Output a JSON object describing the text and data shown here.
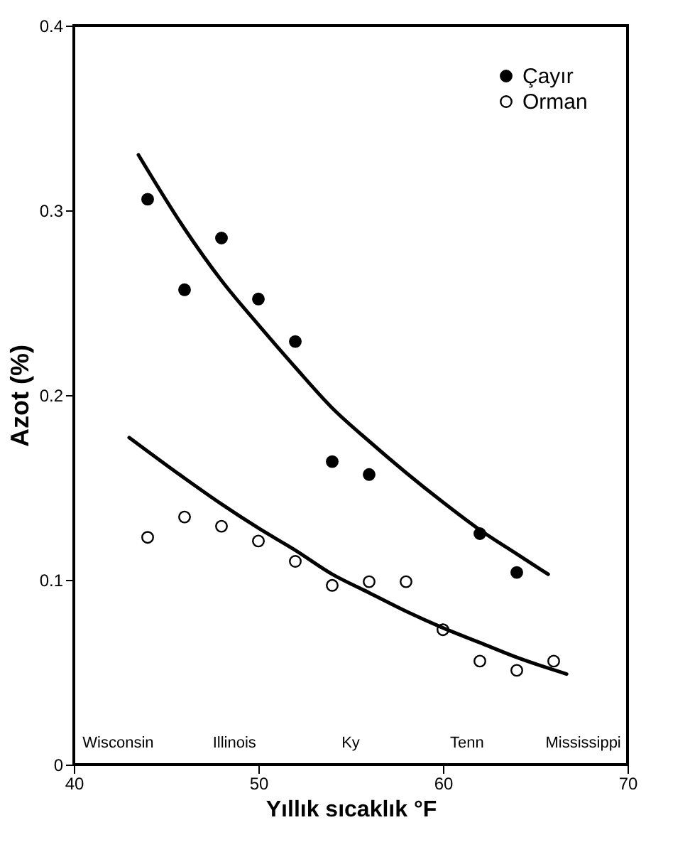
{
  "chart_data": {
    "type": "scatter",
    "xlabel": "Yıllık sıcaklık °F",
    "ylabel": "Azot (%)",
    "xlim": [
      40,
      70
    ],
    "xticks": [
      40,
      50,
      60,
      70
    ],
    "ylim": [
      0,
      0.4
    ],
    "yticks": [
      0,
      0.1,
      0.2,
      0.3,
      0.4
    ],
    "grid": false,
    "legend": "top right",
    "marker": "circle",
    "series": [
      {
        "name": "Çayır",
        "color": "#000000",
        "x": [
          44,
          46,
          48,
          50,
          52,
          54,
          56,
          62,
          64
        ],
        "values": [
          0.306,
          0.257,
          0.285,
          0.252,
          0.229,
          0.164,
          0.157,
          0.125,
          0.104
        ]
      },
      {
        "name": "Orman",
        "color": "#ffffff",
        "x": [
          44,
          46,
          48,
          50,
          52,
          54,
          56,
          58,
          60,
          62,
          64,
          66
        ],
        "values": [
          0.123,
          0.134,
          0.129,
          0.121,
          0.11,
          0.097,
          0.099,
          0.099,
          0.073,
          0.056,
          0.051,
          0.056
        ]
      },
      {
        "type": "line",
        "color": "#000000",
        "marker": "none",
        "line_style": "solid",
        "x": [
          43.5,
          46,
          48,
          50,
          52,
          54,
          56,
          58,
          60,
          62,
          64,
          65.7
        ],
        "values": [
          0.33,
          0.29,
          0.262,
          0.238,
          0.215,
          0.193,
          0.175,
          0.158,
          0.142,
          0.127,
          0.114,
          0.103
        ]
      },
      {
        "type": "line",
        "color": "#000000",
        "marker": "none",
        "line_style": "solid",
        "x": [
          43,
          46,
          48,
          50,
          52,
          54,
          56,
          58,
          60,
          62,
          64,
          66.7
        ],
        "values": [
          0.177,
          0.155,
          0.141,
          0.128,
          0.116,
          0.103,
          0.093,
          0.083,
          0.074,
          0.066,
          0.058,
          0.049
        ]
      }
    ],
    "annotations": [
      "Wisconsin",
      "Illinois",
      "Ky",
      "Tenn",
      "Mississippi"
    ]
  }
}
